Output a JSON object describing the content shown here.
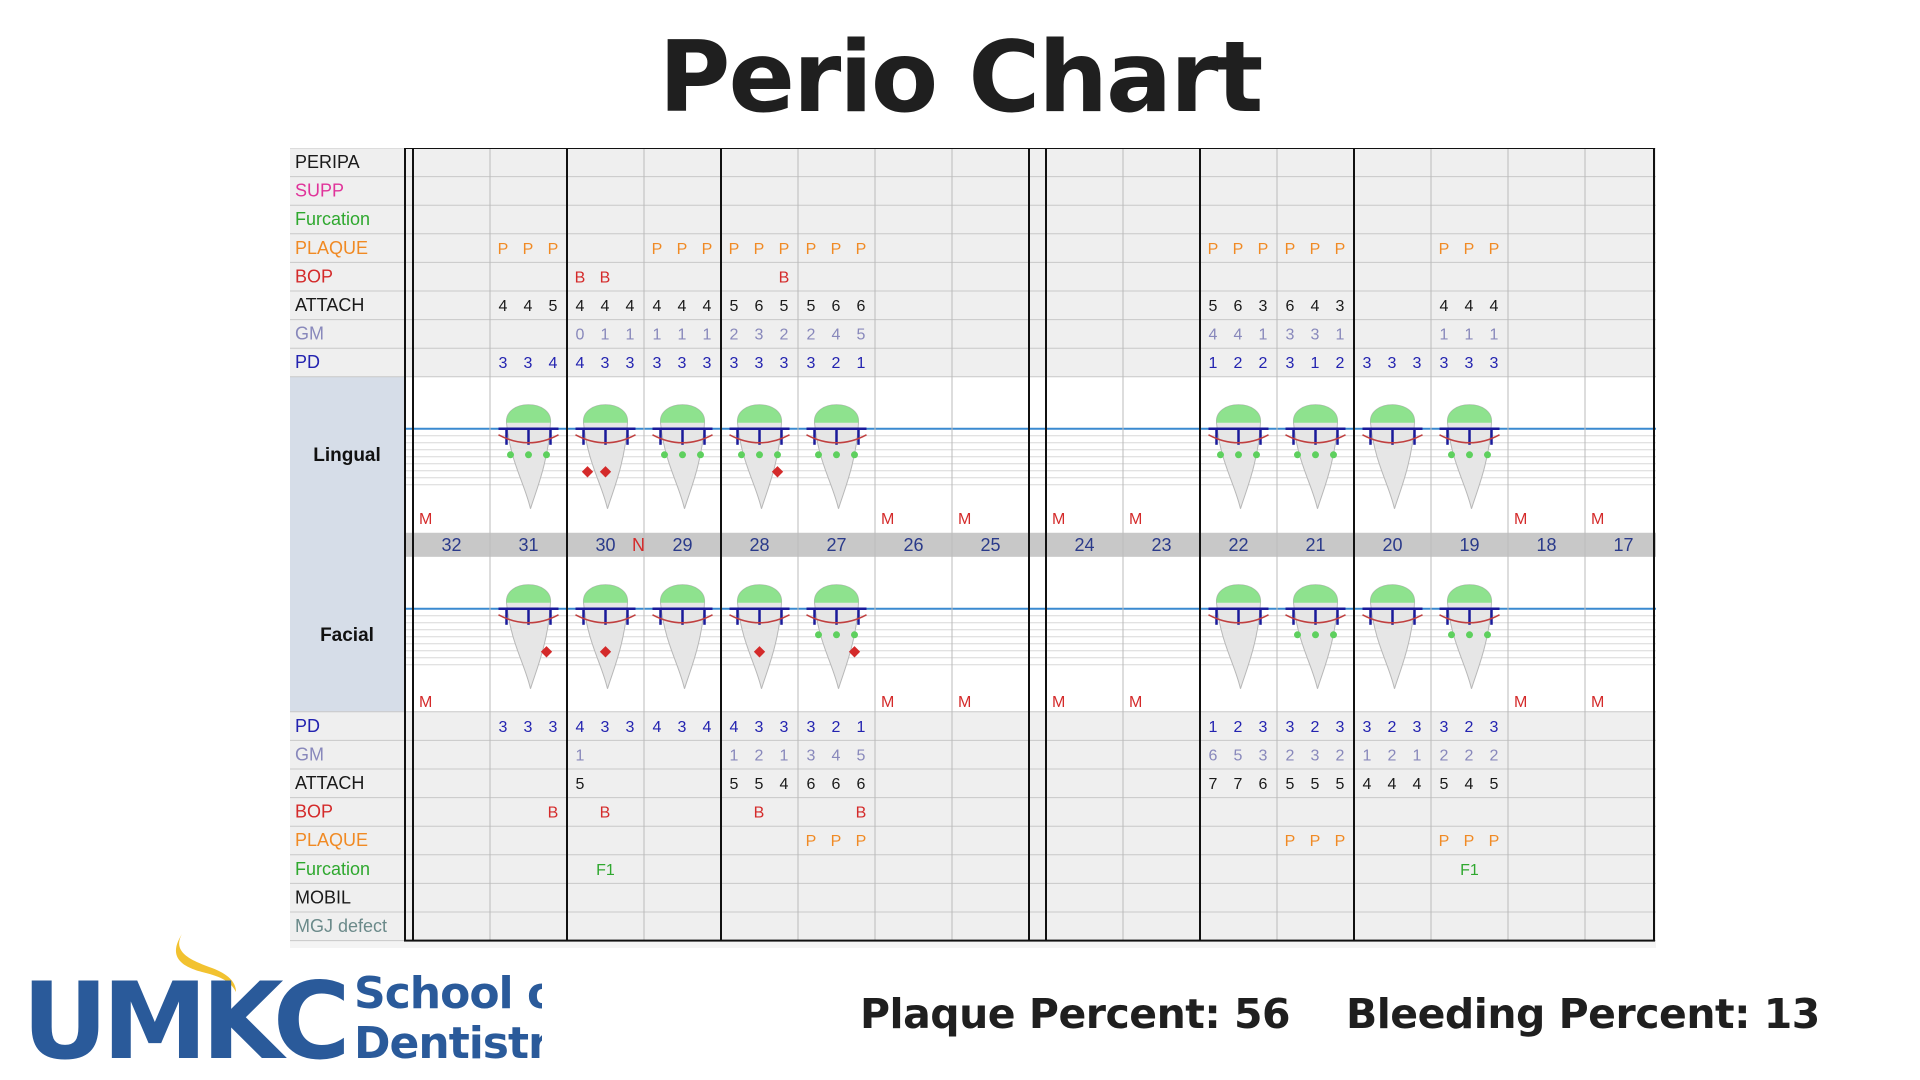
{
  "title": "Perio Chart",
  "lingual_label": "Lingual",
  "facial_label": "Facial",
  "lingual_rows": [
    {
      "label": "PERIPA",
      "color": "#1a1a1a"
    },
    {
      "label": "SUPP",
      "color": "#e0339a"
    },
    {
      "label": "Furcation",
      "color": "#2fa82f"
    },
    {
      "label": "PLAQUE",
      "color": "#f08a24"
    },
    {
      "label": "BOP",
      "color": "#d42a2a"
    },
    {
      "label": "ATTACH",
      "color": "#1a1a1a"
    },
    {
      "label": "GM",
      "color": "#8888bb"
    },
    {
      "label": "PD",
      "color": "#2323b0"
    }
  ],
  "facial_rows": [
    {
      "label": "PD",
      "color": "#2323b0"
    },
    {
      "label": "GM",
      "color": "#8888bb"
    },
    {
      "label": "ATTACH",
      "color": "#1a1a1a"
    },
    {
      "label": "BOP",
      "color": "#d42a2a"
    },
    {
      "label": "PLAQUE",
      "color": "#f08a24"
    },
    {
      "label": "Furcation",
      "color": "#2fa82f"
    },
    {
      "label": "MOBIL",
      "color": "#1a1a1a"
    },
    {
      "label": "MGJ defect",
      "color": "#6b8a8a"
    }
  ],
  "teeth": [
    "32",
    "31",
    "30",
    "29",
    "28",
    "27",
    "26",
    "25",
    "24",
    "23",
    "22",
    "21",
    "20",
    "19",
    "18",
    "17"
  ],
  "missing_marker": "M",
  "missing_teeth": [
    "32",
    "26",
    "25",
    "24",
    "23",
    "18",
    "17"
  ],
  "tooth_30_marker": "N",
  "lingual_values": {
    "PERIPA": {},
    "SUPP": {},
    "Furcation": {},
    "PLAQUE": {
      "31": [
        "P",
        "P",
        "P"
      ],
      "29": [
        "P",
        "P",
        "P"
      ],
      "28": [
        "P",
        "P",
        "P"
      ],
      "27": [
        "P",
        "P",
        "P"
      ],
      "22": [
        "P",
        "P",
        "P"
      ],
      "21": [
        "P",
        "P",
        "P"
      ],
      "19": [
        "P",
        "P",
        "P"
      ]
    },
    "BOP": {
      "30": [
        "B",
        "B",
        ""
      ],
      "28": [
        "",
        "",
        "B"
      ]
    },
    "ATTACH": {
      "31": [
        "4",
        "4",
        "5"
      ],
      "30": [
        "4",
        "4",
        "4"
      ],
      "29": [
        "4",
        "4",
        "4"
      ],
      "28": [
        "5",
        "6",
        "5"
      ],
      "27": [
        "5",
        "6",
        "6"
      ],
      "22": [
        "5",
        "6",
        "3"
      ],
      "21": [
        "6",
        "4",
        "3"
      ],
      "19": [
        "4",
        "4",
        "4"
      ]
    },
    "GM": {
      "30": [
        "0",
        "1",
        "1"
      ],
      "29": [
        "1",
        "1",
        "1"
      ],
      "28": [
        "2",
        "3",
        "2"
      ],
      "27": [
        "2",
        "4",
        "5"
      ],
      "22": [
        "4",
        "4",
        "1"
      ],
      "21": [
        "3",
        "3",
        "1"
      ],
      "19": [
        "1",
        "1",
        "1"
      ]
    },
    "PD": {
      "31": [
        "3",
        "3",
        "4"
      ],
      "30": [
        "4",
        "3",
        "3"
      ],
      "29": [
        "3",
        "3",
        "3"
      ],
      "28": [
        "3",
        "3",
        "3"
      ],
      "27": [
        "3",
        "2",
        "1"
      ],
      "22": [
        "1",
        "2",
        "2"
      ],
      "21": [
        "3",
        "1",
        "2"
      ],
      "20": [
        "3",
        "3",
        "3"
      ],
      "19": [
        "3",
        "3",
        "3"
      ]
    }
  },
  "facial_values": {
    "PD": {
      "31": [
        "3",
        "3",
        "3"
      ],
      "30": [
        "4",
        "3",
        "3"
      ],
      "29": [
        "4",
        "3",
        "4"
      ],
      "28": [
        "4",
        "3",
        "3"
      ],
      "27": [
        "3",
        "2",
        "1"
      ],
      "22": [
        "1",
        "2",
        "3"
      ],
      "21": [
        "3",
        "2",
        "3"
      ],
      "20": [
        "3",
        "2",
        "3"
      ],
      "19": [
        "3",
        "2",
        "3"
      ]
    },
    "GM": {
      "30": [
        "1",
        "",
        ""
      ],
      "28": [
        "1",
        "2",
        "1"
      ],
      "27": [
        "3",
        "4",
        "5"
      ],
      "22": [
        "6",
        "5",
        "3"
      ],
      "21": [
        "2",
        "3",
        "2"
      ],
      "20": [
        "1",
        "2",
        "1"
      ],
      "19": [
        "2",
        "2",
        "2"
      ]
    },
    "ATTACH": {
      "30": [
        "5",
        "",
        ""
      ],
      "28": [
        "5",
        "5",
        "4"
      ],
      "27": [
        "6",
        "6",
        "6"
      ],
      "22": [
        "7",
        "7",
        "6"
      ],
      "21": [
        "5",
        "5",
        "5"
      ],
      "20": [
        "4",
        "4",
        "4"
      ],
      "19": [
        "5",
        "4",
        "5"
      ]
    },
    "BOP": {
      "31": [
        "",
        "",
        "B"
      ],
      "30": [
        "",
        "B",
        ""
      ],
      "28": [
        "",
        "B",
        ""
      ],
      "27": [
        "",
        "",
        "B"
      ]
    },
    "PLAQUE": {
      "27": [
        "P",
        "P",
        "P"
      ],
      "21": [
        "P",
        "P",
        "P"
      ],
      "19": [
        "P",
        "P",
        "P"
      ]
    },
    "Furcation": {
      "30": [
        "F1"
      ],
      "19": [
        "F1"
      ]
    },
    "MOBIL": {},
    "MGJ defect": {}
  },
  "plaque_percent": "Plaque Percent: 56",
  "bleeding_percent": "Bleeding Percent: 13",
  "logo": {
    "wordmark": "UMKC",
    "line1": "School of",
    "line2": "Dentistry"
  },
  "colors": {
    "navy": "#2a5a9a",
    "gold": "#f2c230",
    "tooth_green": "#7ee07e",
    "gum_line": "#3a8ad0"
  }
}
